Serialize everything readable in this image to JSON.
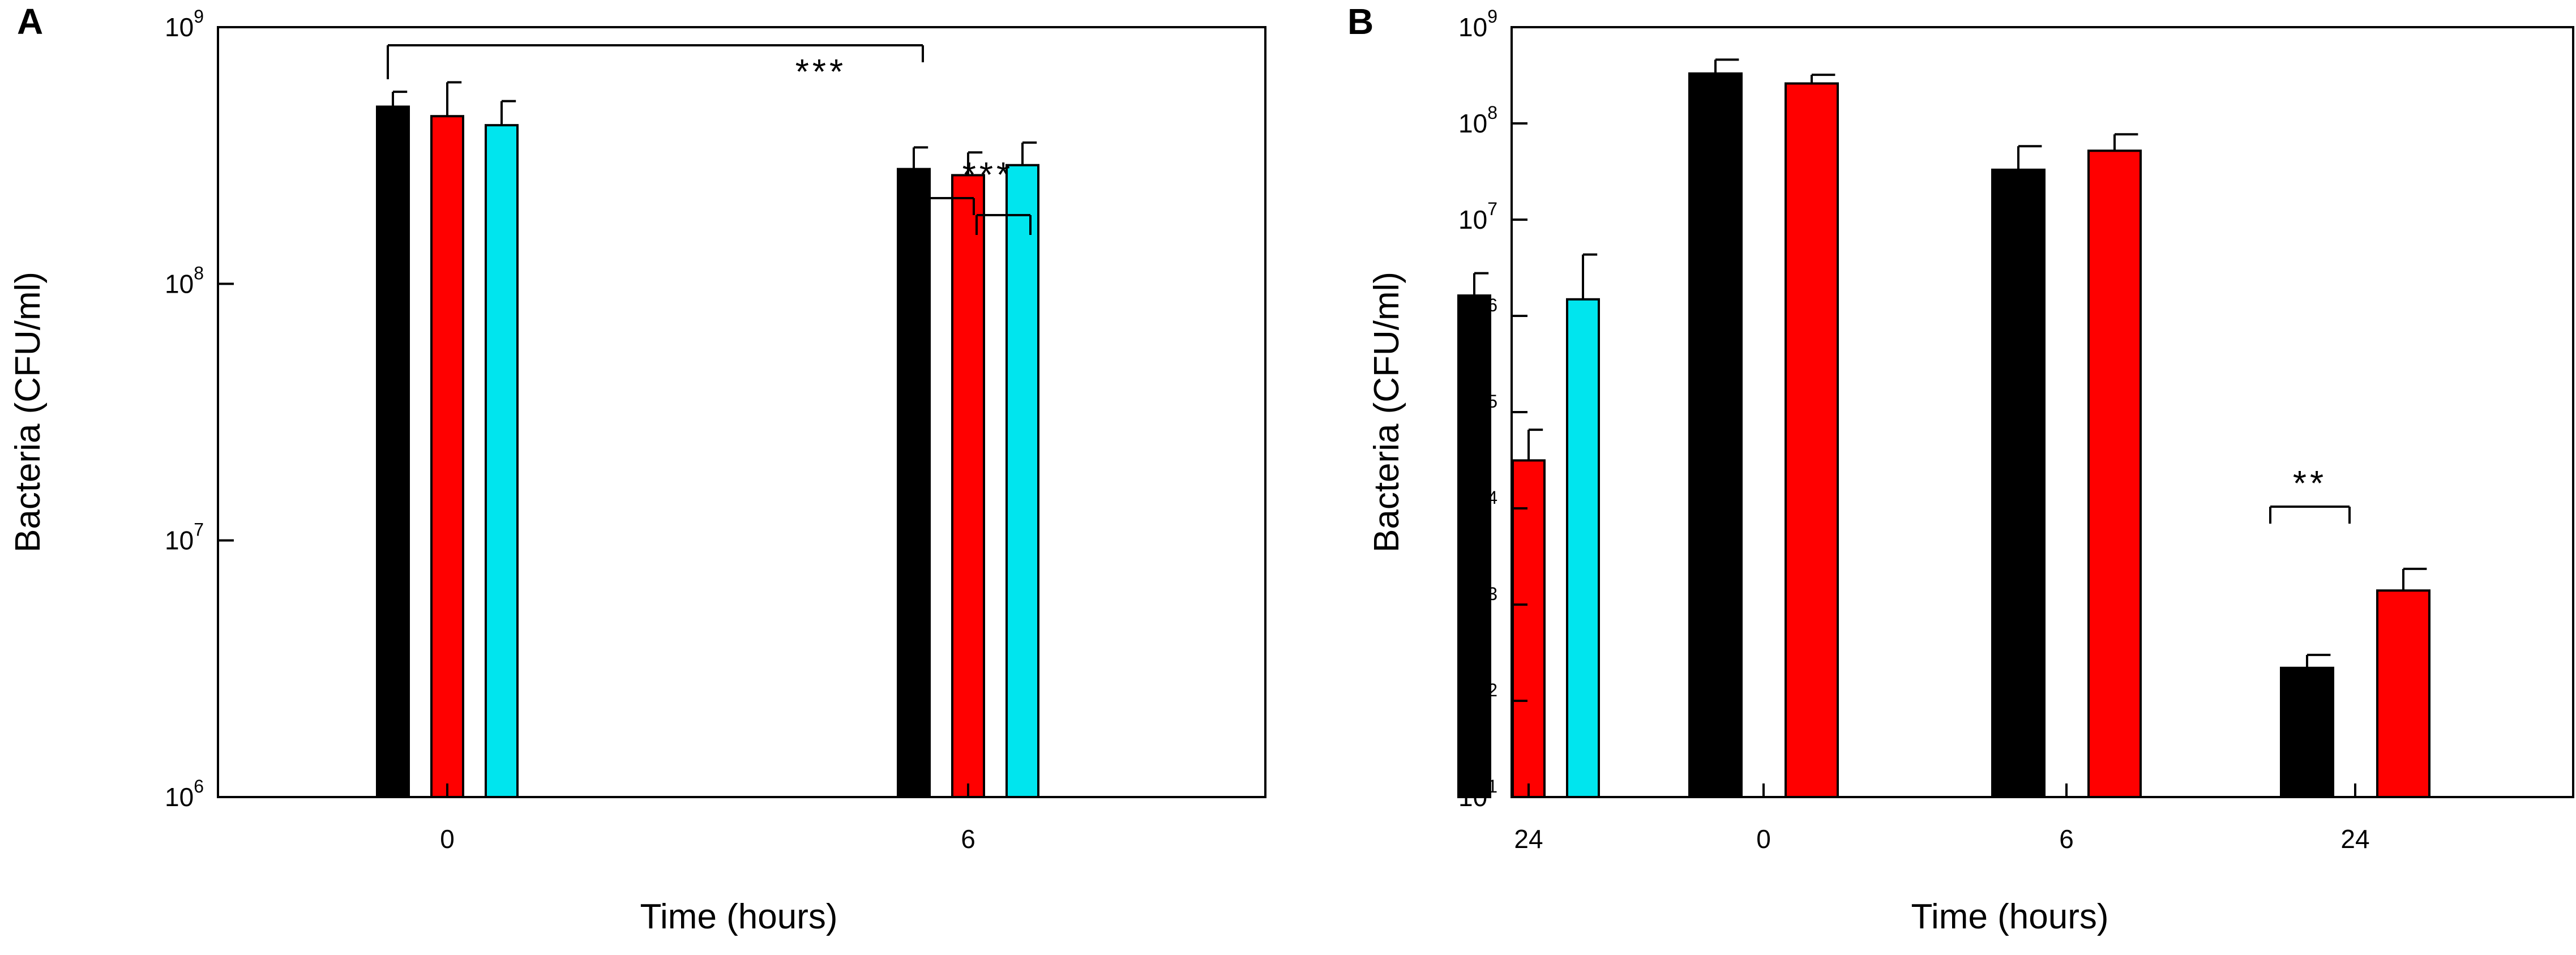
{
  "chart_data": [
    {
      "panel": "A",
      "type": "bar",
      "yscale": "log",
      "ylim": [
        1000000,
        1000000000
      ],
      "xlabel": "Time (hours)",
      "ylabel": "Bacteria (CFU/ml)",
      "categories": [
        "0",
        "6",
        "24"
      ],
      "yticks": [
        {
          "base": "10",
          "exp": "6",
          "value": 1000000
        },
        {
          "base": "10",
          "exp": "7",
          "value": 10000000
        },
        {
          "base": "10",
          "exp": "8",
          "value": 100000000
        },
        {
          "base": "10",
          "exp": "9",
          "value": 1000000000
        }
      ],
      "series": [
        {
          "color": "#000000",
          "values": [
            490000000,
            280000000,
            90000000
          ],
          "errors": [
            70000000,
            60000000,
            20000000
          ]
        },
        {
          "color": "#ff0000",
          "values": [
            450000000,
            265000000,
            20500000
          ],
          "errors": [
            160000000,
            60000000,
            6500000
          ]
        },
        {
          "color": "#00e5ee",
          "values": [
            415000000,
            290000000,
            87000000
          ],
          "errors": [
            100000000,
            65000000,
            43000000
          ]
        }
      ],
      "significance": [
        {
          "label": "***",
          "style": "long"
        },
        {
          "label": "***",
          "style": "pair"
        }
      ]
    },
    {
      "panel": "B",
      "type": "bar",
      "yscale": "log",
      "ylim": [
        10,
        1000000000
      ],
      "xlabel": "Time (hours)",
      "ylabel": "Bacteria (CFU/ml)",
      "categories": [
        "0",
        "6",
        "24"
      ],
      "yticks": [
        {
          "base": "10",
          "exp": "1",
          "value": 10
        },
        {
          "base": "10",
          "exp": "2",
          "value": 100
        },
        {
          "base": "10",
          "exp": "3",
          "value": 1000
        },
        {
          "base": "10",
          "exp": "4",
          "value": 10000
        },
        {
          "base": "10",
          "exp": "5",
          "value": 100000
        },
        {
          "base": "10",
          "exp": "6",
          "value": 1000000
        },
        {
          "base": "10",
          "exp": "7",
          "value": 10000000
        },
        {
          "base": "10",
          "exp": "8",
          "value": 100000000
        },
        {
          "base": "10",
          "exp": "9",
          "value": 1000000000
        }
      ],
      "series": [
        {
          "color": "#000000",
          "values": [
            330000000,
            33000000,
            220
          ],
          "errors": [
            130000000,
            25000000,
            80
          ]
        },
        {
          "color": "#ff0000",
          "values": [
            260000000,
            52000000,
            1400
          ],
          "errors": [
            60000000,
            25000000,
            950
          ]
        }
      ],
      "significance": [
        {
          "label": "**",
          "style": "bracket"
        }
      ]
    }
  ]
}
